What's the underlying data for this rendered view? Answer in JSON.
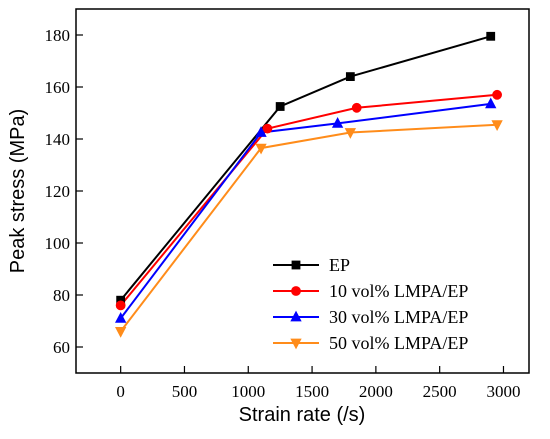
{
  "chart_data": {
    "type": "line",
    "xlabel": "Strain rate (/s)",
    "ylabel": "Peak stress (MPa)",
    "xlim": [
      -350,
      3200
    ],
    "ylim": [
      50,
      190
    ],
    "xticks": [
      0,
      500,
      1000,
      1500,
      2000,
      2500,
      3000
    ],
    "yticks": [
      60,
      80,
      100,
      120,
      140,
      160,
      180
    ],
    "grid": false,
    "legend_position": "bottom-right",
    "series": [
      {
        "name": "EP",
        "color": "#000000",
        "marker": "square",
        "x": [
          0,
          1250,
          1800,
          2900
        ],
        "y": [
          78,
          152.5,
          164,
          179.5
        ]
      },
      {
        "name": "10 vol% LMPA/EP",
        "color": "#ff0000",
        "marker": "circle",
        "x": [
          0,
          1150,
          1850,
          2950
        ],
        "y": [
          76,
          144,
          152,
          157
        ]
      },
      {
        "name": "30 vol% LMPA/EP",
        "color": "#0000ff",
        "marker": "triangle-up",
        "x": [
          0,
          1100,
          1700,
          2900
        ],
        "y": [
          71,
          142.5,
          146,
          153.5
        ]
      },
      {
        "name": "50 vol% LMPA/EP",
        "color": "#ff8c1a",
        "marker": "triangle-down",
        "x": [
          0,
          1100,
          1800,
          2950
        ],
        "y": [
          66,
          136.5,
          142.5,
          145.5
        ]
      }
    ]
  }
}
